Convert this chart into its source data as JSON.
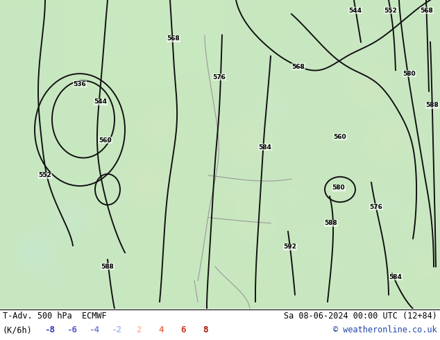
{
  "title_left": "T-Adv. 500 hPa  ECMWF",
  "title_right": "Sa 08-06-2024 00:00 UTC (12+84)",
  "legend_label": "(K/6h)",
  "legend_values": [
    -8,
    -6,
    -4,
    -2,
    2,
    4,
    6,
    8
  ],
  "legend_colors_neg": [
    "#3333bb",
    "#5555cc",
    "#7788dd",
    "#aabbee"
  ],
  "legend_colors_pos": [
    "#ffbbaa",
    "#ee7755",
    "#cc3322",
    "#aa1100"
  ],
  "copyright": "© weatheronline.co.uk",
  "figure_width": 6.34,
  "figure_height": 4.9,
  "dpi": 100,
  "map_bg": "#c8e8c0",
  "contour_color": "#111111",
  "cold_dark": "#2244cc",
  "cold_mid": "#5577ee",
  "cold_light": "#aabbff",
  "cold_vlight": "#ddeeff",
  "warm_dark": "#cc2200",
  "warm_mid": "#ee5533",
  "warm_light": "#ffaaaa",
  "warm_vlight": "#ffddcc",
  "green_light": "#c8e8c0",
  "green_dark": "#88bb88"
}
